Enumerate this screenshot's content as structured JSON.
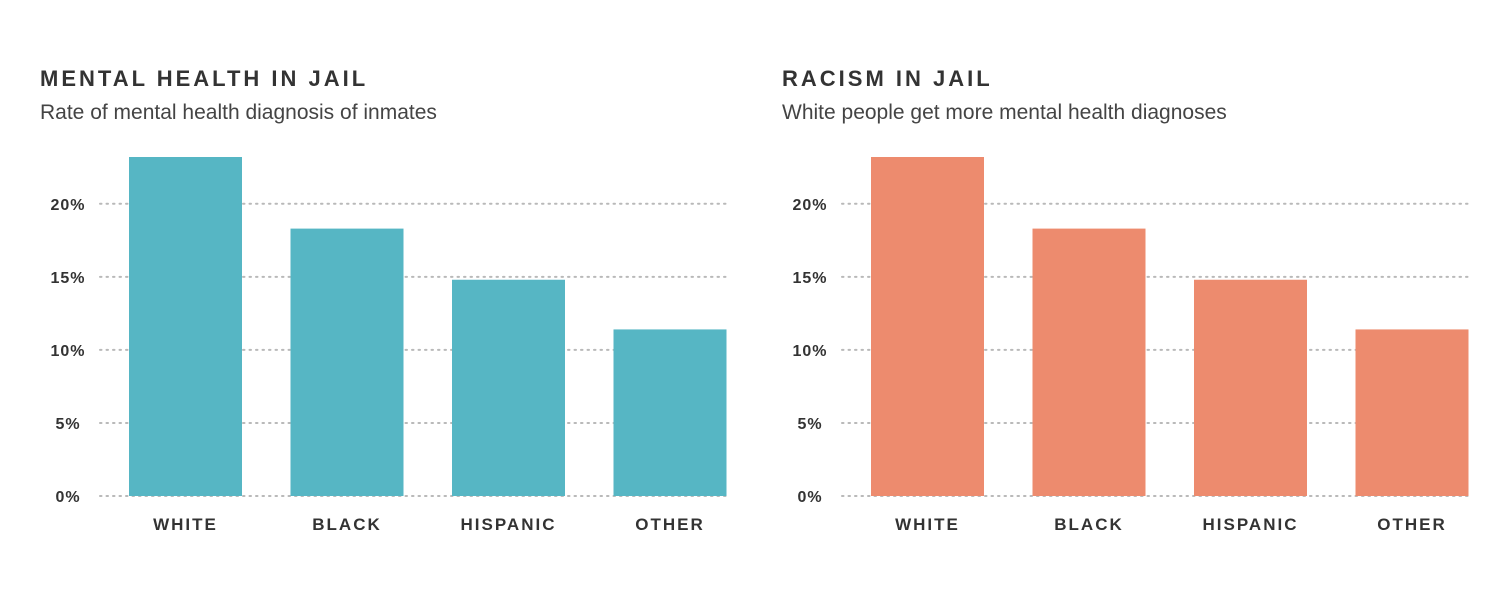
{
  "chart_data": [
    {
      "type": "bar",
      "title": "MENTAL HEALTH IN JAIL",
      "subtitle": "Rate of mental health diagnosis of inmates",
      "categories": [
        "WHITE",
        "BLACK",
        "HISPANIC",
        "OTHER"
      ],
      "values": [
        23.2,
        18.3,
        14.8,
        11.4
      ],
      "ylim": [
        0,
        23.2
      ],
      "yticks": [
        0,
        5,
        10,
        15,
        20
      ],
      "ytick_labels": [
        "0%",
        "5%",
        "10%",
        "15%",
        "20%"
      ],
      "grid": "dotted horizontal",
      "legend": "none",
      "color": "#56b6c4"
    },
    {
      "type": "bar",
      "title": "RACISM IN JAIL",
      "subtitle": "White people get more mental health diagnoses",
      "categories": [
        "WHITE",
        "BLACK",
        "HISPANIC",
        "OTHER"
      ],
      "values": [
        23.2,
        18.3,
        14.8,
        11.4
      ],
      "ylim": [
        0,
        23.2
      ],
      "yticks": [
        0,
        5,
        10,
        15,
        20
      ],
      "ytick_labels": [
        "0%",
        "5%",
        "10%",
        "15%",
        "20%"
      ],
      "grid": "dotted horizontal",
      "legend": "none",
      "color": "#ed8b6e"
    }
  ]
}
